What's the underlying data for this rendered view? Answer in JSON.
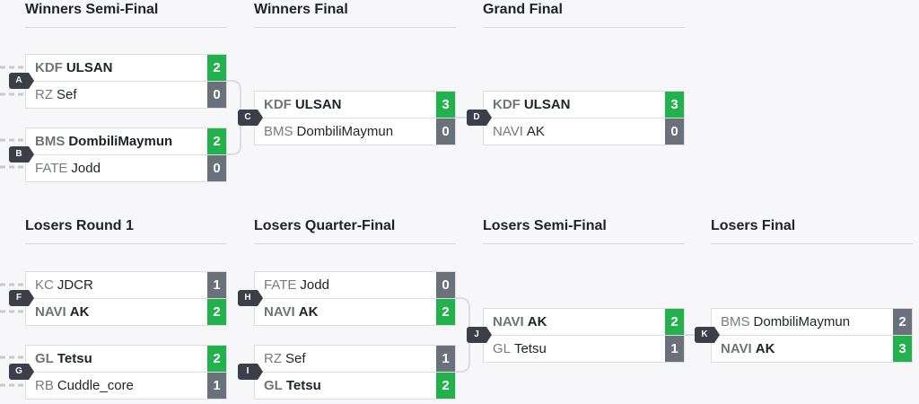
{
  "headers": {
    "ws": "Winners Semi-Final",
    "wf": "Winners Final",
    "gf": "Grand Final",
    "lr1": "Losers Round 1",
    "lqf": "Losers Quarter-Final",
    "lsf": "Losers Semi-Final",
    "lf": "Losers Final"
  },
  "colors": {
    "win": "#22b14c",
    "loss": "#6a717a",
    "badge": "#3b3f48"
  },
  "matches": {
    "A": {
      "label": "A",
      "t1": {
        "tag": "KDF",
        "name": "ULSAN",
        "score": "2"
      },
      "t2": {
        "tag": "RZ",
        "name": "Sef",
        "score": "0"
      }
    },
    "B": {
      "label": "B",
      "t1": {
        "tag": "BMS",
        "name": "DombiliMaymun",
        "score": "2"
      },
      "t2": {
        "tag": "FATE",
        "name": "Jodd",
        "score": "0"
      }
    },
    "C": {
      "label": "C",
      "t1": {
        "tag": "KDF",
        "name": "ULSAN",
        "score": "3"
      },
      "t2": {
        "tag": "BMS",
        "name": "DombiliMaymun",
        "score": "0"
      }
    },
    "D": {
      "label": "D",
      "t1": {
        "tag": "KDF",
        "name": "ULSAN",
        "score": "3"
      },
      "t2": {
        "tag": "NAVI",
        "name": "AK",
        "score": "0"
      }
    },
    "F": {
      "label": "F",
      "t1": {
        "tag": "KC",
        "name": "JDCR",
        "score": "1"
      },
      "t2": {
        "tag": "NAVI",
        "name": "AK",
        "score": "2"
      }
    },
    "G": {
      "label": "G",
      "t1": {
        "tag": "GL",
        "name": "Tetsu",
        "score": "2"
      },
      "t2": {
        "tag": "RB",
        "name": "Cuddle_core",
        "score": "1"
      }
    },
    "H": {
      "label": "H",
      "t1": {
        "tag": "FATE",
        "name": "Jodd",
        "score": "0"
      },
      "t2": {
        "tag": "NAVI",
        "name": "AK",
        "score": "2"
      }
    },
    "I": {
      "label": "I",
      "t1": {
        "tag": "RZ",
        "name": "Sef",
        "score": "1"
      },
      "t2": {
        "tag": "GL",
        "name": "Tetsu",
        "score": "2"
      }
    },
    "J": {
      "label": "J",
      "t1": {
        "tag": "NAVI",
        "name": "AK",
        "score": "2"
      },
      "t2": {
        "tag": "GL",
        "name": "Tetsu",
        "score": "1"
      }
    },
    "K": {
      "label": "K",
      "t1": {
        "tag": "BMS",
        "name": "DombiliMaymun",
        "score": "2"
      },
      "t2": {
        "tag": "NAVI",
        "name": "AK",
        "score": "3"
      }
    }
  }
}
